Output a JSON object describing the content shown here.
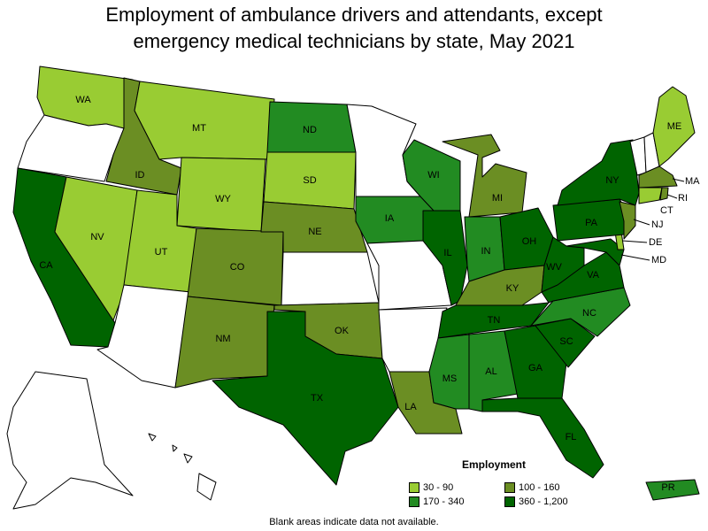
{
  "title": {
    "line1": "Employment of ambulance drivers and attendants, except",
    "line2": "emergency medical technicians by state, May 2021"
  },
  "colors": {
    "c1": "#99cc33",
    "c2": "#6b8e23",
    "c3": "#228b22",
    "c4": "#006400",
    "nodata": "#ffffff"
  },
  "legend": {
    "title": "Employment",
    "items": [
      {
        "label": "30 - 90",
        "class": "c1"
      },
      {
        "label": "100 - 160",
        "class": "c2"
      },
      {
        "label": "170 - 340",
        "class": "c3"
      },
      {
        "label": "360 - 1,200",
        "class": "c4"
      }
    ]
  },
  "note": "Blank areas indicate data not available.",
  "states": {
    "WA": "c1",
    "OR": "nodata",
    "CA": "c4",
    "NV": "c1",
    "ID": "c2",
    "MT": "c1",
    "WY": "c1",
    "UT": "c1",
    "AZ": "nodata",
    "CO": "c2",
    "NM": "c2",
    "ND": "c3",
    "SD": "c1",
    "NE": "c2",
    "KS": "nodata",
    "OK": "c2",
    "TX": "c4",
    "MN": "nodata",
    "IA": "c3",
    "MO": "nodata",
    "AR": "nodata",
    "LA": "c2",
    "WI": "c3",
    "IL": "c4",
    "MI": "c2",
    "IN": "c3",
    "OH": "c4",
    "KY": "c2",
    "TN": "c4",
    "MS": "c3",
    "AL": "c3",
    "GA": "c4",
    "FL": "c4",
    "SC": "c4",
    "NC": "c3",
    "VA": "c4",
    "WV": "c4",
    "PA": "c4",
    "NY": "c4",
    "VT": "nodata",
    "NH": "nodata",
    "ME": "c1",
    "MA": "c2",
    "RI": "c2",
    "CT": "c1",
    "NJ": "c2",
    "DE": "c1",
    "MD": "c4",
    "AK": "nodata",
    "HI": "nodata",
    "PR": "c3"
  }
}
